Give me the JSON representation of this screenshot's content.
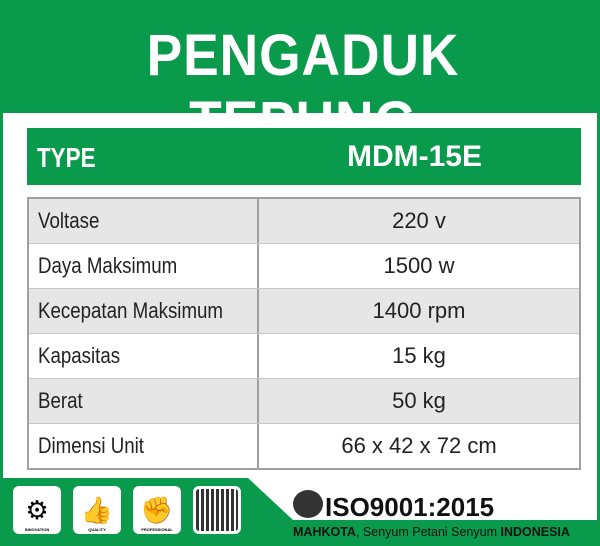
{
  "title": "PENGADUK TEPUNG",
  "header": {
    "label": "TYPE",
    "value": "MDM-15E"
  },
  "specs": [
    {
      "label": "Voltase",
      "value": "220 v"
    },
    {
      "label": "Daya Maksimum",
      "value": "1500 w"
    },
    {
      "label": "Kecepatan Maksimum",
      "value": "1400 rpm"
    },
    {
      "label": "Kapasitas",
      "value": "15 kg"
    },
    {
      "label": "Berat",
      "value": "50 kg"
    },
    {
      "label": "Dimensi Unit",
      "value": "66 x 42 x 72 cm"
    }
  ],
  "footer": {
    "badges": [
      {
        "label": "INNOVATION",
        "icon": "gears-icon"
      },
      {
        "label": "QUALITY",
        "icon": "thumbs-up-icon"
      },
      {
        "label": "PROFESSIONAL",
        "icon": "fist-icon"
      }
    ],
    "qr": "qr-code",
    "iso": "ISO9001:2015",
    "tagline_brand": "MAHKOTA",
    "tagline_mid": ", Senyum Petani Senyum ",
    "tagline_end": "INDONESIA"
  },
  "colors": {
    "green": "#0a9a4c",
    "row_gray": "#e6e6e6"
  }
}
